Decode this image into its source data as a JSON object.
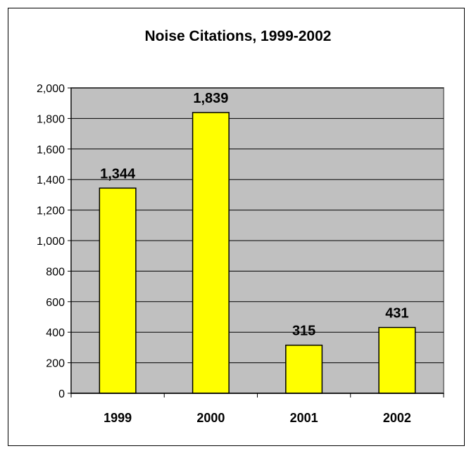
{
  "chart_data": {
    "type": "bar",
    "title": "Noise Citations, 1999-2002",
    "categories": [
      "1999",
      "2000",
      "2001",
      "2002"
    ],
    "values": [
      1344,
      1839,
      315,
      431
    ],
    "data_labels": [
      "1,344",
      "1,839",
      "315",
      "431"
    ],
    "xlabel": "",
    "ylabel": "",
    "ylim": [
      0,
      2000
    ],
    "yticks": [
      0,
      200,
      400,
      600,
      800,
      1000,
      1200,
      1400,
      1600,
      1800,
      2000
    ],
    "ytick_labels": [
      "0",
      "200",
      "400",
      "600",
      "800",
      "1,000",
      "1,200",
      "1,400",
      "1,600",
      "1,800",
      "2,000"
    ],
    "grid": true,
    "legend": "none",
    "colors": {
      "plot_background": "#c0c0c0",
      "bar_fill": "#ffff00",
      "bar_stroke": "#000000",
      "gridline": "#000000"
    }
  }
}
